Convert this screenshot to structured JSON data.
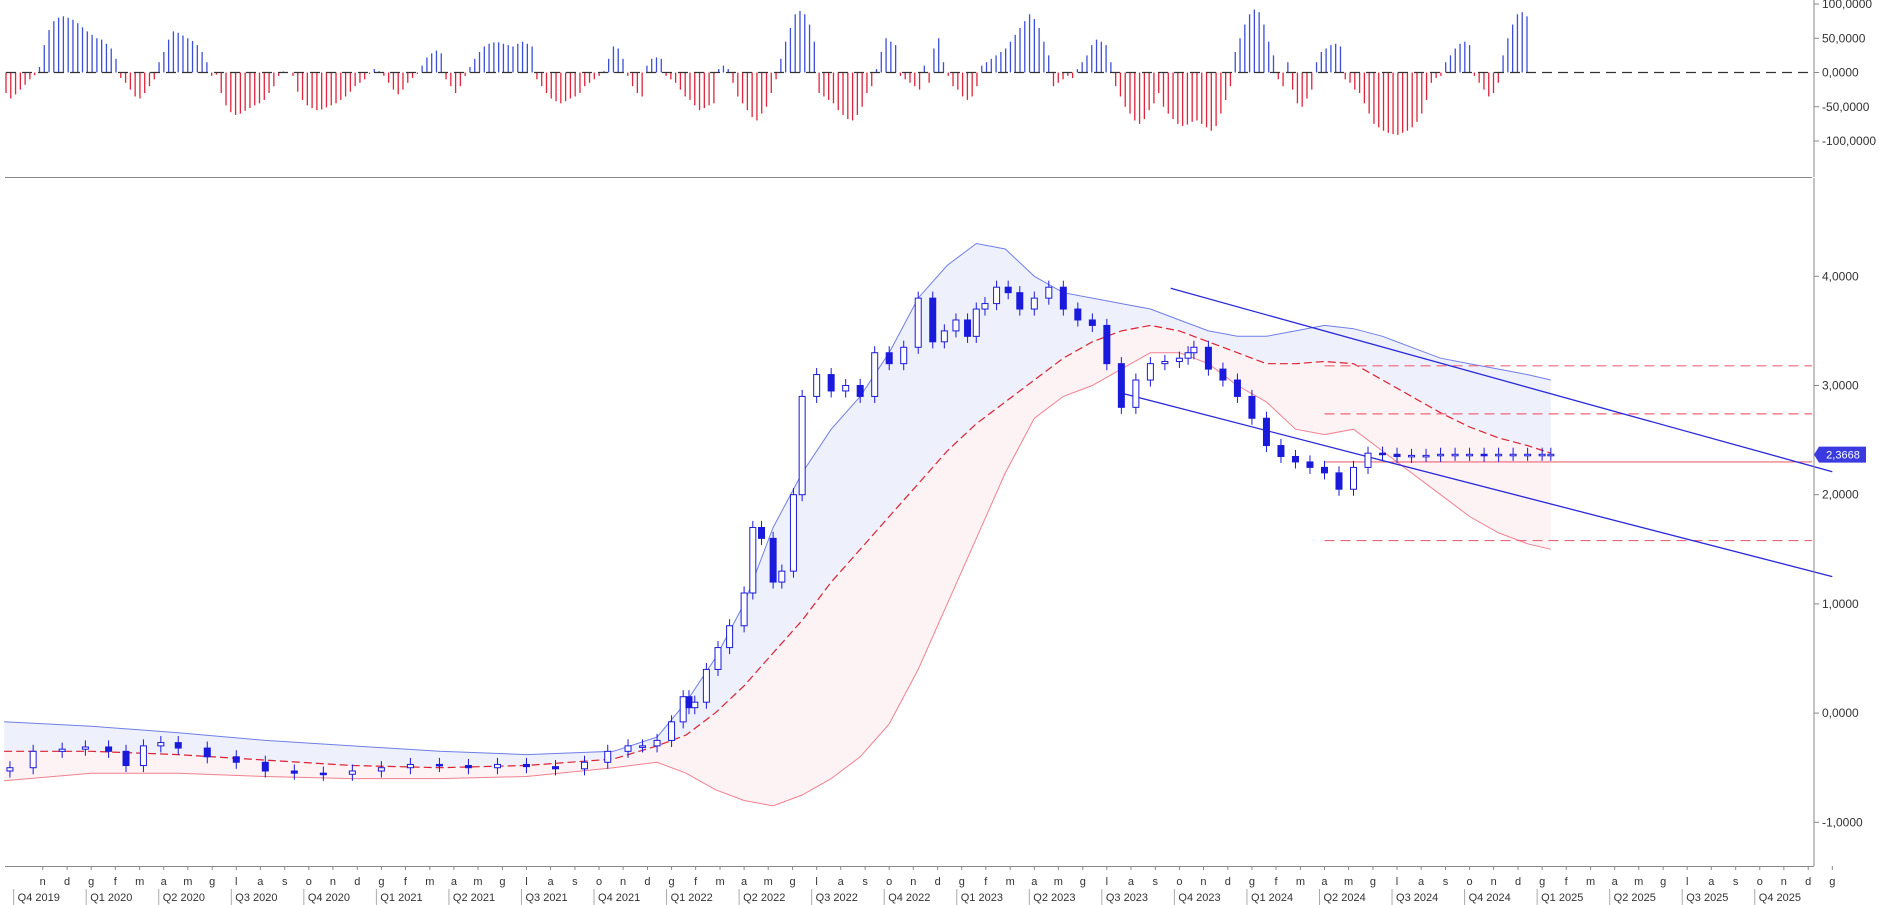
{
  "chart_data": [
    {
      "type": "bar",
      "panel": "oscillator",
      "ylim": [
        -100000,
        100000
      ],
      "y_ticks": [
        "100,0000",
        "50,0000",
        "0,0000",
        "-50,0000",
        "-100,0000"
      ],
      "y_tick_values": [
        100000,
        50000,
        0,
        -50000,
        -100000
      ],
      "colors": {
        "positive": "#3c4fdc",
        "negative": "#e0243c",
        "zero_line": "#333333"
      },
      "series": [
        {
          "values": [
            -30000,
            -38000,
            -32000,
            -25000,
            -18000,
            -10000,
            -4000,
            8000,
            40000,
            62000,
            75000,
            80000,
            82000,
            80000,
            77000,
            72000,
            66000,
            60000,
            55000,
            50000,
            48000,
            42000,
            35000,
            20000,
            -8000,
            -15000,
            -25000,
            -35000,
            -38000,
            -30000,
            -20000,
            -10000,
            15000,
            30000,
            48000,
            60000,
            58000,
            54000,
            50000,
            46000,
            40000,
            30000,
            15000,
            -5000,
            -3000,
            -30000,
            -48000,
            -58000,
            -62000,
            -60000,
            -56000,
            -52000,
            -48000,
            -45000,
            -40000,
            -30000,
            -20000,
            -5000,
            1500,
            0,
            -5000,
            -28000,
            -40000,
            -48000,
            -52000,
            -55000,
            -54000,
            -51000,
            -48000,
            -45000,
            -40000,
            -35000,
            -28000,
            -20000,
            -15000,
            -10000,
            -2000,
            5000,
            2000,
            -5000,
            -15000,
            -25000,
            -32000,
            -25000,
            -15000,
            -8000,
            -2000,
            10000,
            22000,
            28000,
            32000,
            28000,
            -10000,
            -20000,
            -30000,
            -20000,
            -5000,
            8000,
            20000,
            30000,
            38000,
            42000,
            44000,
            44000,
            42000,
            40000,
            38000,
            42000,
            45000,
            42000,
            38000,
            -10000,
            -20000,
            -30000,
            -38000,
            -42000,
            -45000,
            -42000,
            -38000,
            -35000,
            -30000,
            -20000,
            -15000,
            -10000,
            -5000,
            2000,
            20000,
            38000,
            35000,
            20000,
            -5000,
            -20000,
            -30000,
            -35000,
            10000,
            20000,
            22000,
            20000,
            -5000,
            -10000,
            -15000,
            -25000,
            -35000,
            -40000,
            -48000,
            -55000,
            -52000,
            -48000,
            -45000,
            5000,
            10000,
            5000,
            -15000,
            -35000,
            -45000,
            -55000,
            -65000,
            -70000,
            -60000,
            -50000,
            -30000,
            -10000,
            20000,
            45000,
            65000,
            85000,
            90000,
            85000,
            70000,
            45000,
            -30000,
            -35000,
            -40000,
            -45000,
            -55000,
            -62000,
            -68000,
            -70000,
            -62000,
            -50000,
            -30000,
            -20000,
            5000,
            30000,
            50000,
            45000,
            40000,
            -5000,
            -10000,
            -15000,
            -20000,
            -25000,
            10000,
            -15000,
            35000,
            50000,
            15000,
            -5000,
            -20000,
            -25000,
            -35000,
            -40000,
            -35000,
            -20000,
            10000,
            15000,
            20000,
            25000,
            30000,
            35000,
            45000,
            55000,
            65000,
            75000,
            85000,
            78000,
            65000,
            45000,
            25000,
            -20000,
            -15000,
            -10000,
            -5000,
            -8000,
            5000,
            15000,
            25000,
            40000,
            48000,
            45000,
            40000,
            15000,
            -20000,
            -35000,
            -50000,
            -60000,
            -70000,
            -75000,
            -68000,
            -55000,
            -45000,
            -30000,
            -50000,
            -60000,
            -68000,
            -75000,
            -78000,
            -76000,
            -72000,
            -70000,
            -75000,
            -80000,
            -85000,
            -78000,
            -60000,
            -40000,
            -20000,
            30000,
            50000,
            70000,
            85000,
            92000,
            88000,
            70000,
            45000,
            25000,
            -10000,
            -20000,
            15000,
            -25000,
            -45000,
            -50000,
            -38000,
            -25000,
            15000,
            30000,
            35000,
            40000,
            42000,
            38000,
            -10000,
            -15000,
            -25000,
            -30000,
            -45000,
            -60000,
            -75000,
            -80000,
            -85000,
            -88000,
            -90000,
            -91000,
            -88000,
            -85000,
            -80000,
            -72000,
            -60000,
            -40000,
            -15000,
            -8000,
            -5000,
            15000,
            25000,
            35000,
            42000,
            45000,
            40000,
            -5000,
            -15000,
            -25000,
            -35000,
            -30000,
            -15000,
            25000,
            50000,
            70000,
            85000,
            88000,
            82000
          ]
        }
      ]
    },
    {
      "type": "candlestick",
      "panel": "price",
      "ylim": [
        -1.4,
        4.9
      ],
      "y_ticks": [
        "4,0000",
        "3,0000",
        "2,0000",
        "1,0000",
        "0,0000",
        "-1,0000"
      ],
      "y_tick_values": [
        4,
        3,
        2,
        1,
        0,
        -1
      ],
      "last_price_label": "2,3668",
      "last_price": 2.3668,
      "xlim": [
        2019.7,
        2026.0
      ],
      "x_month_labels": [
        "n",
        "d",
        "g",
        "f",
        "m",
        "a",
        "m",
        "g",
        "l",
        "a",
        "s",
        "o",
        "n",
        "d",
        "g",
        "f",
        "m",
        "a",
        "m",
        "g",
        "l",
        "a",
        "s",
        "o",
        "n",
        "d",
        "g",
        "f",
        "m",
        "a",
        "m",
        "g",
        "l",
        "a",
        "s",
        "o",
        "n",
        "d",
        "g",
        "f",
        "m",
        "a",
        "m",
        "g",
        "l",
        "a",
        "s",
        "o",
        "n",
        "d",
        "g",
        "f",
        "m",
        "a",
        "m",
        "g",
        "l",
        "a",
        "s",
        "o",
        "n",
        "d",
        "g",
        "f",
        "m",
        "a",
        "m",
        "g",
        "l",
        "a",
        "s",
        "o",
        "n",
        "d",
        "g",
        "f"
      ],
      "x_month_positions": [
        2019.833,
        2019.917,
        2020.0,
        2020.083,
        2020.167,
        2020.25,
        2020.333,
        2020.417,
        2020.5,
        2020.583,
        2020.667,
        2020.75,
        2020.833,
        2020.917,
        2021.0,
        2021.083,
        2021.167,
        2021.25,
        2021.333,
        2021.417,
        2021.5,
        2021.583,
        2021.667,
        2021.75,
        2021.833,
        2021.917,
        2022.0,
        2022.083,
        2022.167,
        2022.25,
        2022.333,
        2022.417,
        2022.5,
        2022.583,
        2022.667,
        2022.75,
        2022.833,
        2022.917,
        2023.0,
        2023.083,
        2023.167,
        2023.25,
        2023.333,
        2023.417,
        2023.5,
        2023.583,
        2023.667,
        2023.75,
        2023.833,
        2023.917,
        2024.0,
        2024.083,
        2024.167,
        2024.25,
        2024.333,
        2024.417,
        2024.5,
        2024.583,
        2024.667,
        2024.75,
        2024.833,
        2024.917,
        2025.0,
        2025.083,
        2025.167,
        2025.25,
        2025.333,
        2025.417,
        2025.5,
        2025.583,
        2025.667,
        2025.75,
        2025.833,
        2025.917,
        2026.0,
        2026.083
      ],
      "x_quarter_labels": [
        "Q4 2019",
        "Q1 2020",
        "Q2 2020",
        "Q3 2020",
        "Q4 2020",
        "Q1 2021",
        "Q2 2021",
        "Q3 2021",
        "Q4 2021",
        "Q1 2022",
        "Q2 2022",
        "Q3 2022",
        "Q4 2022",
        "Q1 2023",
        "Q2 2023",
        "Q3 2023",
        "Q4 2023",
        "Q1 2024",
        "Q2 2024",
        "Q3 2024",
        "Q4 2024",
        "Q1 2025",
        "Q2 2025",
        "Q3 2025",
        "Q4 2025"
      ],
      "x_quarter_positions": [
        2019.75,
        2020.0,
        2020.25,
        2020.5,
        2020.75,
        2021.0,
        2021.25,
        2021.5,
        2021.75,
        2022.0,
        2022.25,
        2022.5,
        2022.75,
        2023.0,
        2023.25,
        2023.5,
        2023.75,
        2024.0,
        2024.25,
        2024.5,
        2024.75,
        2025.0,
        2025.25,
        2025.5,
        2025.75
      ],
      "colors": {
        "candle": "#1a1adc",
        "band_upper": "#6f7fe6",
        "band_lower": "#f08090",
        "band_fill": "#eef0fc",
        "band_fill_lower": "#fdf2f4",
        "ma": "#dd2233",
        "channel": "#2a2ad8",
        "levels": "#ee6677",
        "price_box": "#3a3ae0"
      },
      "close_series": {
        "x": [
          2019.72,
          2019.8,
          2019.9,
          2019.98,
          2020.06,
          2020.12,
          2020.18,
          2020.24,
          2020.3,
          2020.4,
          2020.5,
          2020.6,
          2020.7,
          2020.8,
          2020.9,
          2021.0,
          2021.1,
          2021.2,
          2021.3,
          2021.4,
          2021.5,
          2021.6,
          2021.7,
          2021.78,
          2021.85,
          2021.9,
          2021.95,
          2022.0,
          2022.04,
          2022.06,
          2022.08,
          2022.12,
          2022.16,
          2022.2,
          2022.25,
          2022.28,
          2022.31,
          2022.35,
          2022.38,
          2022.42,
          2022.45,
          2022.5,
          2022.55,
          2022.6,
          2022.65,
          2022.7,
          2022.75,
          2022.8,
          2022.85,
          2022.9,
          2022.94,
          2022.98,
          2023.02,
          2023.05,
          2023.08,
          2023.12,
          2023.16,
          2023.2,
          2023.25,
          2023.3,
          2023.35,
          2023.4,
          2023.45,
          2023.5,
          2023.55,
          2023.6,
          2023.65,
          2023.7,
          2023.75,
          2023.78,
          2023.8,
          2023.85,
          2023.9,
          2023.95,
          2024.0,
          2024.05,
          2024.1,
          2024.15,
          2024.2,
          2024.25,
          2024.3,
          2024.35,
          2024.4,
          2024.45,
          2024.5,
          2024.55,
          2024.6,
          2024.65,
          2024.7,
          2024.75,
          2024.8,
          2024.85,
          2024.9,
          2024.95,
          2025.0,
          2025.03
        ],
        "values": [
          -0.5,
          -0.35,
          -0.33,
          -0.31,
          -0.35,
          -0.48,
          -0.3,
          -0.27,
          -0.32,
          -0.4,
          -0.45,
          -0.53,
          -0.55,
          -0.56,
          -0.53,
          -0.5,
          -0.47,
          -0.48,
          -0.5,
          -0.47,
          -0.49,
          -0.51,
          -0.45,
          -0.35,
          -0.3,
          -0.3,
          -0.25,
          -0.08,
          0.15,
          0.05,
          0.1,
          0.4,
          0.6,
          0.8,
          1.1,
          1.7,
          1.6,
          1.2,
          1.3,
          2.0,
          2.9,
          3.1,
          2.95,
          3.0,
          2.9,
          3.3,
          3.2,
          3.35,
          3.8,
          3.4,
          3.5,
          3.6,
          3.45,
          3.7,
          3.75,
          3.9,
          3.85,
          3.7,
          3.8,
          3.9,
          3.7,
          3.6,
          3.55,
          3.2,
          2.8,
          3.05,
          3.2,
          3.22,
          3.25,
          3.3,
          3.35,
          3.15,
          3.05,
          2.9,
          2.7,
          2.45,
          2.35,
          2.3,
          2.25,
          2.2,
          2.05,
          2.25,
          2.38,
          2.37,
          2.35,
          2.36,
          2.36,
          2.37,
          2.37,
          2.37,
          2.36,
          2.37,
          2.37,
          2.37,
          2.37,
          2.37
        ]
      },
      "moving_average": {
        "x": [
          2019.7,
          2020.0,
          2020.3,
          2020.6,
          2020.9,
          2021.2,
          2021.5,
          2021.8,
          2021.95,
          2022.05,
          2022.15,
          2022.25,
          2022.35,
          2022.45,
          2022.55,
          2022.65,
          2022.75,
          2022.85,
          2022.95,
          2023.05,
          2023.15,
          2023.25,
          2023.35,
          2023.45,
          2023.55,
          2023.65,
          2023.75,
          2023.85,
          2023.95,
          2024.05,
          2024.15,
          2024.25,
          2024.35,
          2024.45,
          2024.55,
          2024.65,
          2024.75,
          2024.85,
          2024.95,
          2025.03
        ],
        "values": [
          -0.35,
          -0.35,
          -0.38,
          -0.43,
          -0.48,
          -0.5,
          -0.48,
          -0.42,
          -0.3,
          -0.2,
          0.0,
          0.25,
          0.55,
          0.85,
          1.2,
          1.5,
          1.8,
          2.1,
          2.4,
          2.65,
          2.85,
          3.05,
          3.25,
          3.4,
          3.5,
          3.55,
          3.5,
          3.4,
          3.3,
          3.2,
          3.2,
          3.22,
          3.2,
          3.05,
          2.9,
          2.75,
          2.62,
          2.52,
          2.45,
          2.38
        ]
      },
      "upper_band": {
        "x": [
          2019.7,
          2020.0,
          2020.3,
          2020.6,
          2020.9,
          2021.2,
          2021.5,
          2021.8,
          2021.95,
          2022.05,
          2022.15,
          2022.25,
          2022.35,
          2022.45,
          2022.55,
          2022.65,
          2022.75,
          2022.85,
          2022.95,
          2023.05,
          2023.15,
          2023.25,
          2023.35,
          2023.45,
          2023.55,
          2023.65,
          2023.75,
          2023.85,
          2023.95,
          2024.05,
          2024.15,
          2024.25,
          2024.35,
          2024.45,
          2024.55,
          2024.65,
          2024.75,
          2024.85,
          2024.95,
          2025.03
        ],
        "values": [
          -0.08,
          -0.12,
          -0.18,
          -0.25,
          -0.3,
          -0.35,
          -0.38,
          -0.35,
          -0.22,
          0.1,
          0.5,
          1.0,
          1.7,
          2.2,
          2.6,
          2.9,
          3.3,
          3.8,
          4.1,
          4.3,
          4.25,
          4.0,
          3.85,
          3.8,
          3.75,
          3.7,
          3.6,
          3.5,
          3.45,
          3.45,
          3.5,
          3.55,
          3.52,
          3.45,
          3.35,
          3.25,
          3.2,
          3.15,
          3.1,
          3.05
        ]
      },
      "lower_band": {
        "x": [
          2019.7,
          2020.0,
          2020.3,
          2020.6,
          2020.9,
          2021.2,
          2021.5,
          2021.8,
          2021.95,
          2022.05,
          2022.15,
          2022.25,
          2022.35,
          2022.45,
          2022.55,
          2022.65,
          2022.75,
          2022.85,
          2022.95,
          2023.05,
          2023.15,
          2023.25,
          2023.35,
          2023.45,
          2023.55,
          2023.65,
          2023.75,
          2023.85,
          2023.95,
          2024.05,
          2024.15,
          2024.25,
          2024.35,
          2024.45,
          2024.55,
          2024.65,
          2024.75,
          2024.85,
          2024.95,
          2025.03
        ],
        "values": [
          -0.62,
          -0.55,
          -0.55,
          -0.58,
          -0.6,
          -0.6,
          -0.58,
          -0.5,
          -0.45,
          -0.55,
          -0.7,
          -0.8,
          -0.85,
          -0.75,
          -0.6,
          -0.4,
          -0.1,
          0.4,
          1.0,
          1.6,
          2.2,
          2.7,
          2.9,
          3.0,
          3.15,
          3.3,
          3.3,
          3.2,
          3.0,
          2.85,
          2.6,
          2.55,
          2.6,
          2.4,
          2.2,
          2.0,
          1.8,
          1.65,
          1.55,
          1.5
        ]
      },
      "channel_upper": {
        "x": [
          2023.72,
          2026.0
        ],
        "values": [
          3.89,
          2.21
        ]
      },
      "channel_lower": {
        "x": [
          2023.55,
          2026.0
        ],
        "values": [
          2.93,
          1.25
        ]
      },
      "horizontal_levels": [
        {
          "value": 3.18,
          "x_start": 2024.25,
          "dashed": true
        },
        {
          "value": 2.74,
          "x_start": 2024.25,
          "dashed": true
        },
        {
          "value": 2.3,
          "x_start": 2024.25,
          "dashed": false
        },
        {
          "value": 1.58,
          "x_start": 2024.25,
          "dashed": true
        }
      ]
    }
  ]
}
